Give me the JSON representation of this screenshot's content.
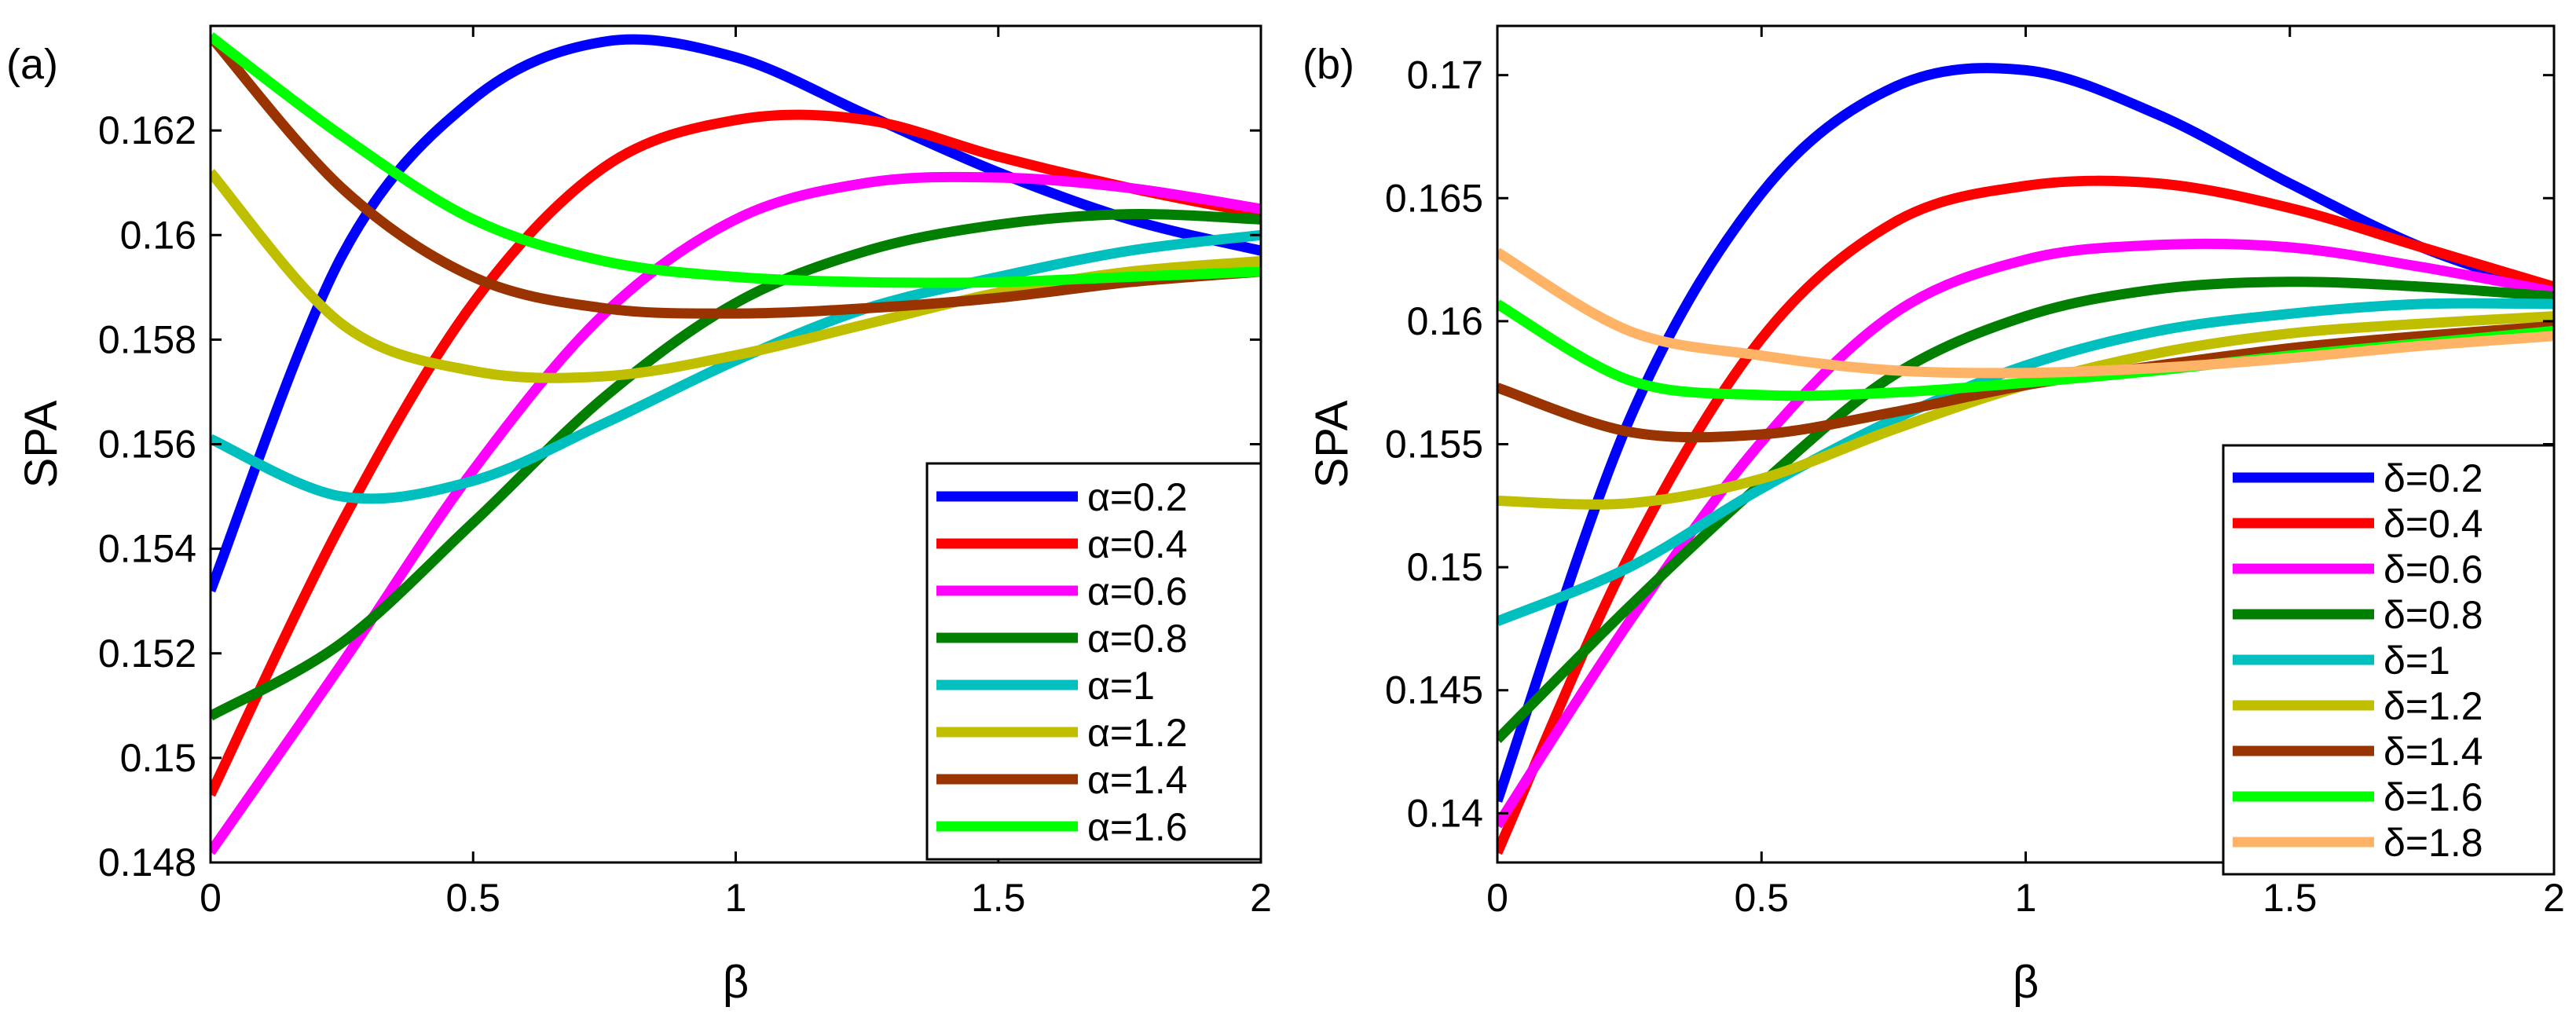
{
  "chart_data": [
    {
      "type": "line",
      "panel_label": "(a)",
      "xlabel": "β",
      "ylabel": "SPA",
      "xlim": [
        0,
        2
      ],
      "ylim": [
        0.148,
        0.164
      ],
      "xticks": [
        0,
        0.5,
        1,
        1.5,
        2
      ],
      "xtick_labels": [
        "0",
        "0.5",
        "1",
        "1.5",
        "2"
      ],
      "yticks": [
        0.148,
        0.15,
        0.152,
        0.154,
        0.156,
        0.158,
        0.16,
        0.162
      ],
      "ytick_labels": [
        "0.148",
        "0.15",
        "0.152",
        "0.154",
        "0.156",
        "0.158",
        "0.16",
        "0.162"
      ],
      "legend_position": "lower-right",
      "x": [
        0,
        0.25,
        0.5,
        0.75,
        1,
        1.25,
        1.5,
        1.75,
        2
      ],
      "series": [
        {
          "name": "α=0.2",
          "color": "#0000ff",
          "values": [
            0.1532,
            0.1596,
            0.1626,
            0.1637,
            0.1634,
            0.1623,
            0.1612,
            0.1603,
            0.1597
          ]
        },
        {
          "name": "α=0.4",
          "color": "#ff0000",
          "values": [
            0.1493,
            0.1545,
            0.1587,
            0.1613,
            0.1622,
            0.1622,
            0.1615,
            0.1609,
            0.1604
          ]
        },
        {
          "name": "α=0.6",
          "color": "#ff00ff",
          "values": [
            0.1482,
            0.1518,
            0.1555,
            0.1585,
            0.1603,
            0.161,
            0.1611,
            0.1609,
            0.1605
          ]
        },
        {
          "name": "α=0.8",
          "color": "#007f00",
          "values": [
            0.1508,
            0.1522,
            0.1545,
            0.1569,
            0.1587,
            0.1597,
            0.1602,
            0.1604,
            0.1603
          ]
        },
        {
          "name": "α=1",
          "color": "#00bfbf",
          "values": [
            0.1561,
            0.155,
            0.1553,
            0.1564,
            0.1576,
            0.1586,
            0.1592,
            0.1597,
            0.16
          ]
        },
        {
          "name": "α=1.2",
          "color": "#bfbf00",
          "values": [
            0.1612,
            0.1583,
            0.1574,
            0.1573,
            0.1577,
            0.1583,
            0.1589,
            0.1593,
            0.1595
          ]
        },
        {
          "name": "α=1.4",
          "color": "#993300",
          "values": [
            0.1638,
            0.1609,
            0.1592,
            0.1586,
            0.1585,
            0.1586,
            0.1588,
            0.1591,
            0.1593
          ]
        },
        {
          "name": "α=1.6",
          "color": "#00ff00",
          "values": [
            0.1638,
            0.1619,
            0.1603,
            0.1595,
            0.1592,
            0.1591,
            0.1591,
            0.1592,
            0.1593
          ]
        }
      ]
    },
    {
      "type": "line",
      "panel_label": "(b)",
      "xlabel": "β",
      "ylabel": "SPA",
      "xlim": [
        0,
        2
      ],
      "ylim": [
        0.138,
        0.172
      ],
      "xticks": [
        0,
        0.5,
        1,
        1.5,
        2
      ],
      "xtick_labels": [
        "0",
        "0.5",
        "1",
        "1.5",
        "2"
      ],
      "yticks": [
        0.14,
        0.145,
        0.15,
        0.155,
        0.16,
        0.165,
        0.17
      ],
      "ytick_labels": [
        "0.14",
        "0.145",
        "0.15",
        "0.155",
        "0.16",
        "0.165",
        "0.17"
      ],
      "legend_position": "lower-right",
      "x": [
        0,
        0.25,
        0.5,
        0.75,
        1,
        1.25,
        1.5,
        1.75,
        2
      ],
      "series": [
        {
          "name": "δ=0.2",
          "color": "#0000ff",
          "values": [
            0.1405,
            0.156,
            0.1652,
            0.1695,
            0.1702,
            0.1684,
            0.1656,
            0.163,
            0.1612
          ]
        },
        {
          "name": "δ=0.4",
          "color": "#ff0000",
          "values": [
            0.1384,
            0.1505,
            0.1593,
            0.164,
            0.1655,
            0.1656,
            0.1646,
            0.163,
            0.1614
          ]
        },
        {
          "name": "δ=0.6",
          "color": "#ff00ff",
          "values": [
            0.1395,
            0.1478,
            0.1551,
            0.1603,
            0.1625,
            0.1631,
            0.163,
            0.1622,
            0.1612
          ]
        },
        {
          "name": "δ=0.8",
          "color": "#007f00",
          "values": [
            0.143,
            0.1484,
            0.1534,
            0.1578,
            0.1602,
            0.1613,
            0.1616,
            0.1614,
            0.161
          ]
        },
        {
          "name": "δ=1",
          "color": "#00bfbf",
          "values": [
            0.1478,
            0.15,
            0.1532,
            0.156,
            0.1582,
            0.1596,
            0.1603,
            0.1607,
            0.1607
          ]
        },
        {
          "name": "δ=1.2",
          "color": "#bfbf00",
          "values": [
            0.1527,
            0.1526,
            0.1536,
            0.1556,
            0.1574,
            0.1587,
            0.1595,
            0.1599,
            0.1602
          ]
        },
        {
          "name": "δ=1.4",
          "color": "#993300",
          "values": [
            0.1573,
            0.1555,
            0.1554,
            0.1563,
            0.1574,
            0.1582,
            0.1589,
            0.1594,
            0.1598
          ]
        },
        {
          "name": "δ=1.6",
          "color": "#00ff00",
          "values": [
            0.1607,
            0.1576,
            0.157,
            0.1571,
            0.1575,
            0.158,
            0.1586,
            0.1591,
            0.1596
          ]
        },
        {
          "name": "δ=1.8",
          "color": "#ffb366",
          "values": [
            0.1628,
            0.1596,
            0.1586,
            0.158,
            0.1579,
            0.1581,
            0.1585,
            0.159,
            0.1594
          ]
        }
      ]
    }
  ]
}
